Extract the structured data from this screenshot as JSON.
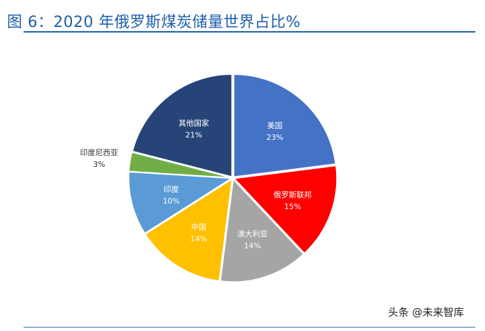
{
  "figure": {
    "title": "图 6：2020 年俄罗斯煤炭储量世界占比%"
  },
  "watermark": {
    "text": "头条 @未来智库"
  },
  "chart_data": {
    "type": "pie",
    "title": "2020 年俄罗斯煤炭储量世界占比%",
    "start_angle_deg": 0,
    "direction": "clockwise",
    "slices": [
      {
        "name": "美国",
        "value": 23,
        "label": "23%",
        "color": "#4472c4"
      },
      {
        "name": "俄罗斯联邦",
        "value": 15,
        "label": "15%",
        "color": "#ff0000"
      },
      {
        "name": "澳大利亚",
        "value": 14,
        "label": "14%",
        "color": "#a5a5a5"
      },
      {
        "name": "中国",
        "value": 14,
        "label": "14%",
        "color": "#ffc000"
      },
      {
        "name": "印度",
        "value": 10,
        "label": "10%",
        "color": "#5b9bd5"
      },
      {
        "name": "印度尼西亚",
        "value": 3,
        "label": "3%",
        "color": "#70ad47",
        "label_outside": true
      },
      {
        "name": "其他国家",
        "value": 21,
        "label": "21%",
        "color": "#264478"
      }
    ]
  }
}
